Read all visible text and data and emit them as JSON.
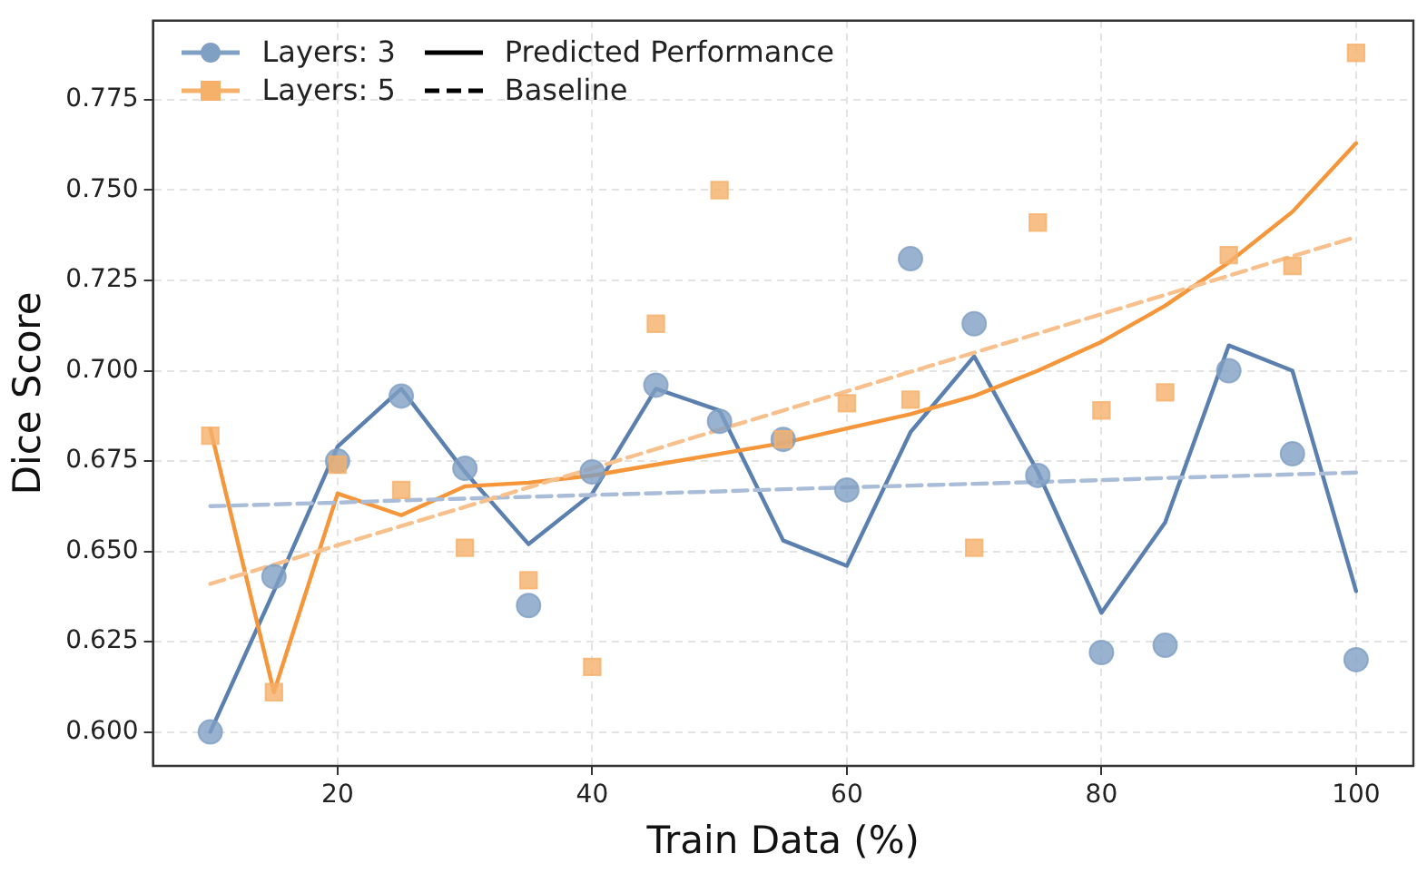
{
  "chart_data": {
    "type": "line",
    "xlabel": "Train Data (%)",
    "ylabel": "Dice Score",
    "x": [
      10,
      15,
      20,
      25,
      30,
      35,
      40,
      45,
      50,
      55,
      60,
      65,
      70,
      75,
      80,
      85,
      90,
      95,
      100
    ],
    "series": [
      {
        "name": "Layers: 3",
        "type": "scatter",
        "color": "#7f9fc3",
        "marker": "circle",
        "values": [
          0.6,
          0.643,
          0.675,
          0.693,
          0.673,
          0.635,
          0.672,
          0.696,
          0.686,
          0.681,
          0.667,
          0.731,
          0.713,
          0.671,
          0.622,
          0.624,
          0.7,
          0.677,
          0.62
        ]
      },
      {
        "name": "Layers: 5",
        "type": "scatter",
        "color": "#f5b06a",
        "marker": "square",
        "values": [
          0.682,
          0.611,
          0.674,
          0.667,
          0.651,
          0.642,
          0.618,
          0.713,
          0.75,
          0.681,
          0.691,
          0.692,
          0.651,
          0.741,
          0.689,
          0.694,
          0.732,
          0.729,
          0.788
        ]
      },
      {
        "color": "#5b80b0",
        "marker": "none",
        "values": [
          0.6,
          0.639,
          0.679,
          0.695,
          0.672,
          0.652,
          0.666,
          0.695,
          0.689,
          0.653,
          0.646,
          0.683,
          0.704,
          0.672,
          0.633,
          0.658,
          0.707,
          0.7,
          0.639
        ]
      },
      {
        "color": "#f5963a",
        "marker": "none",
        "values": [
          0.684,
          0.611,
          0.666,
          0.66,
          0.668,
          0.669,
          0.671,
          0.674,
          0.677,
          0.68,
          0.684,
          0.688,
          0.693,
          0.7,
          0.708,
          0.718,
          0.73,
          0.744,
          0.763
        ]
      },
      {
        "color": "#a9bcd8",
        "marker": "none",
        "line_style": "dashed",
        "values": [
          0.6625,
          0.663,
          0.6635,
          0.6641,
          0.6646,
          0.6651,
          0.6656,
          0.6661,
          0.6666,
          0.6672,
          0.6677,
          0.6682,
          0.6687,
          0.6692,
          0.6697,
          0.6703,
          0.6708,
          0.6713,
          0.6718
        ]
      },
      {
        "color": "#f8c08c",
        "marker": "none",
        "line_style": "dashed",
        "values": [
          0.641,
          0.6463,
          0.6517,
          0.657,
          0.6623,
          0.6677,
          0.673,
          0.6783,
          0.6837,
          0.689,
          0.6943,
          0.6997,
          0.705,
          0.7103,
          0.7157,
          0.721,
          0.7263,
          0.7317,
          0.737
        ]
      },
      {
        "name": "Predicted Performance",
        "color": "#000000",
        "marker": "none",
        "line_style": "solid",
        "values": [
          null,
          null,
          null,
          null,
          null,
          null,
          null,
          null,
          null,
          null,
          null,
          null,
          null,
          null,
          null,
          null,
          null,
          null,
          null
        ]
      },
      {
        "name": "Baseline",
        "color": "#000000",
        "marker": "none",
        "line_style": "dashed",
        "values": [
          null,
          null,
          null,
          null,
          null,
          null,
          null,
          null,
          null,
          null,
          null,
          null,
          null,
          null,
          null,
          null,
          null,
          null,
          null
        ]
      }
    ],
    "xlim": [
      5.5,
      104.5
    ],
    "xticks": [
      20,
      40,
      60,
      80,
      100
    ],
    "ylim": [
      0.5906,
      0.7969
    ],
    "yticks": [
      {
        "value": 0.6,
        "label": "0.600"
      },
      {
        "value": 0.625,
        "label": "0.625"
      },
      {
        "value": 0.65,
        "label": "0.650"
      },
      {
        "value": 0.675,
        "label": "0.675"
      },
      {
        "value": 0.7,
        "label": "0.700"
      },
      {
        "value": 0.725,
        "label": "0.725"
      },
      {
        "value": 0.75,
        "label": "0.750"
      },
      {
        "value": 0.775,
        "label": "0.775"
      }
    ],
    "grid": true,
    "legend": "top left"
  }
}
